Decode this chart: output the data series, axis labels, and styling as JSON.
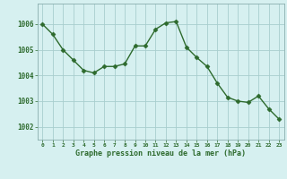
{
  "x": [
    0,
    1,
    2,
    3,
    4,
    5,
    6,
    7,
    8,
    9,
    10,
    11,
    12,
    13,
    14,
    15,
    16,
    17,
    18,
    19,
    20,
    21,
    22,
    23
  ],
  "y": [
    1006.0,
    1005.6,
    1005.0,
    1004.6,
    1004.2,
    1004.1,
    1004.35,
    1004.35,
    1004.45,
    1005.15,
    1005.15,
    1005.8,
    1006.05,
    1006.1,
    1005.1,
    1004.7,
    1004.35,
    1003.7,
    1003.15,
    1003.0,
    1002.95,
    1003.2,
    1002.7,
    1002.3
  ],
  "line_color": "#2d6a2d",
  "marker": "D",
  "marker_size": 2.5,
  "bg_color": "#d6f0f0",
  "grid_color": "#a8cece",
  "xlabel": "Graphe pression niveau de la mer (hPa)",
  "xlabel_color": "#2d6a2d",
  "tick_color": "#2d6a2d",
  "ylim": [
    1001.5,
    1006.8
  ],
  "yticks": [
    1002,
    1003,
    1004,
    1005,
    1006
  ],
  "xlim": [
    -0.5,
    23.5
  ],
  "xticks": [
    0,
    1,
    2,
    3,
    4,
    5,
    6,
    7,
    8,
    9,
    10,
    11,
    12,
    13,
    14,
    15,
    16,
    17,
    18,
    19,
    20,
    21,
    22,
    23
  ]
}
